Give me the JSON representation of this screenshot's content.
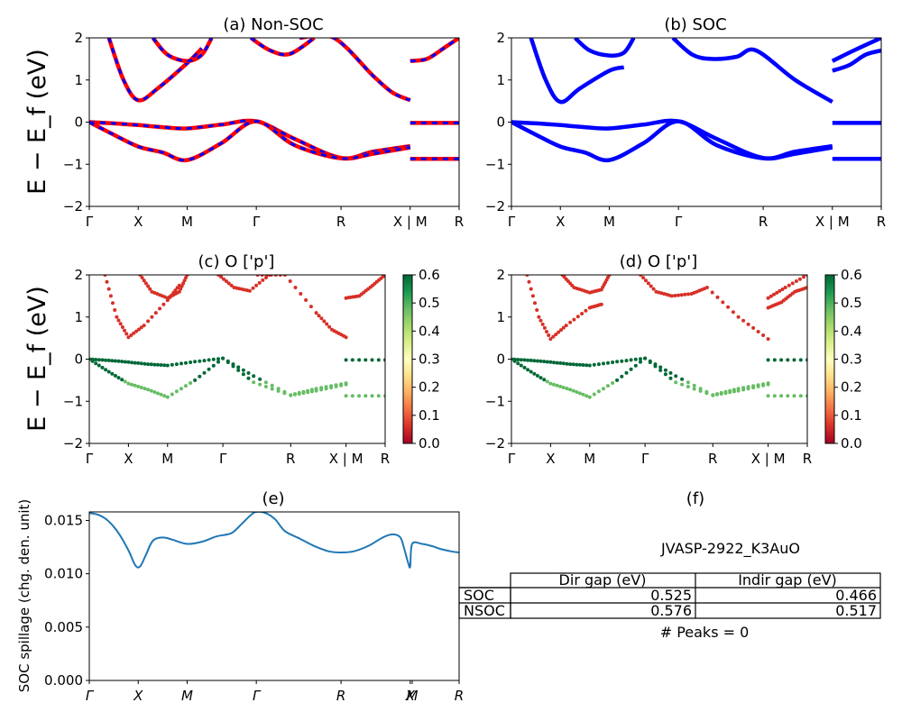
{
  "chart_data": [
    {
      "id": "a",
      "type": "line",
      "title": "(a) Non-SOC",
      "ylabel": "E − E_f (eV)",
      "ylim": [
        -2,
        2
      ],
      "yticks": [
        -2,
        -1,
        0,
        1,
        2
      ],
      "xtick_labels": [
        "Γ",
        "X",
        "M",
        "Γ",
        "R",
        "X | M",
        "R"
      ],
      "xtick_positions": [
        0,
        0.5,
        1.0,
        1.707,
        2.573,
        3.28,
        3.78
      ],
      "xlim": [
        0,
        3.78
      ],
      "series_colors": [
        "#ff0000",
        "#0000ff"
      ],
      "series": [
        {
          "x": [
            0,
            0.25,
            0.5,
            0.75,
            1.0,
            1.35,
            1.707,
            2.1,
            2.573,
            2.9,
            3.28
          ],
          "y": [
            0,
            -0.03,
            -0.07,
            -0.12,
            -0.15,
            -0.06,
            0.02,
            -0.4,
            -0.85,
            -0.7,
            -0.57
          ]
        },
        {
          "x": [
            0,
            0.25,
            0.5,
            0.75,
            1.0,
            1.35,
            1.707,
            2.1,
            2.573,
            2.9,
            3.28
          ],
          "y": [
            0,
            -0.3,
            -0.58,
            -0.72,
            -0.9,
            -0.5,
            0.02,
            -0.55,
            -0.86,
            -0.75,
            -0.6
          ]
        },
        {
          "x": [
            0.2,
            0.35,
            0.5,
            0.7,
            1.0,
            1.15
          ],
          "y": [
            2.0,
            1.0,
            0.52,
            0.8,
            1.4,
            1.75
          ]
        },
        {
          "x": [
            0.65,
            0.8,
            1.0,
            1.15,
            1.25
          ],
          "y": [
            2.0,
            1.6,
            1.45,
            1.6,
            2.0
          ]
        },
        {
          "x": [
            1.65,
            1.85,
            2.05,
            2.3
          ],
          "y": [
            2.0,
            1.7,
            1.62,
            2.0
          ]
        },
        {
          "x": [
            2.15,
            2.5,
            2.9,
            3.1,
            3.28
          ],
          "y": [
            2.0,
            2.0,
            1.1,
            0.7,
            0.52
          ]
        },
        {
          "x": [
            3.28,
            3.45,
            3.62,
            3.78
          ],
          "y": [
            1.45,
            1.5,
            1.75,
            2.0
          ]
        },
        {
          "x": [
            3.28,
            3.78
          ],
          "y": [
            -0.87,
            -0.87
          ]
        },
        {
          "x": [
            3.28,
            3.78
          ],
          "y": [
            -0.02,
            -0.02
          ]
        }
      ]
    },
    {
      "id": "b",
      "type": "line",
      "title": "(b) SOC",
      "ylim": [
        -2,
        2
      ],
      "yticks": [
        -2,
        -1,
        0,
        1,
        2
      ],
      "xtick_labels": [
        "Γ",
        "X",
        "M",
        "Γ",
        "R",
        "X | M",
        "R"
      ],
      "xtick_positions": [
        0,
        0.5,
        1.0,
        1.707,
        2.573,
        3.28,
        3.78
      ],
      "xlim": [
        0,
        3.78
      ],
      "series_colors": [
        "#0000ff"
      ],
      "series": [
        {
          "x": [
            0,
            0.25,
            0.5,
            0.75,
            1.0,
            1.35,
            1.707,
            2.1,
            2.573,
            2.9,
            3.28
          ],
          "y": [
            0,
            -0.03,
            -0.07,
            -0.12,
            -0.15,
            -0.06,
            0.02,
            -0.4,
            -0.85,
            -0.7,
            -0.57
          ]
        },
        {
          "x": [
            0,
            0.25,
            0.5,
            0.75,
            1.0,
            1.35,
            1.707,
            2.1,
            2.573,
            2.9,
            3.28
          ],
          "y": [
            0,
            -0.3,
            -0.58,
            -0.72,
            -0.9,
            -0.5,
            0.02,
            -0.55,
            -0.86,
            -0.75,
            -0.6
          ]
        },
        {
          "x": [
            0.2,
            0.35,
            0.5,
            0.7,
            1.0,
            1.15
          ],
          "y": [
            2.0,
            1.0,
            0.48,
            0.8,
            1.22,
            1.3
          ]
        },
        {
          "x": [
            0.65,
            0.8,
            1.0,
            1.15,
            1.25
          ],
          "y": [
            2.0,
            1.7,
            1.58,
            1.65,
            2.0
          ]
        },
        {
          "x": [
            1.65,
            1.85,
            2.05,
            2.3,
            2.5,
            2.9,
            3.28
          ],
          "y": [
            2.0,
            1.6,
            1.5,
            1.55,
            1.7,
            1.0,
            0.48
          ]
        },
        {
          "x": [
            3.28,
            3.45,
            3.62,
            3.78
          ],
          "y": [
            1.22,
            1.35,
            1.6,
            1.7
          ]
        },
        {
          "x": [
            3.28,
            3.5,
            3.78
          ],
          "y": [
            1.45,
            1.7,
            2.0
          ]
        },
        {
          "x": [
            3.28,
            3.78
          ],
          "y": [
            -0.87,
            -0.87
          ]
        },
        {
          "x": [
            3.28,
            3.78
          ],
          "y": [
            -0.02,
            -0.02
          ]
        }
      ]
    },
    {
      "id": "c",
      "type": "scatter",
      "title": "(c)  O ['p']",
      "ylabel": "E − E_f (eV)",
      "ylim": [
        -2,
        2
      ],
      "yticks": [
        -2,
        -1,
        0,
        1,
        2
      ],
      "xtick_labels": [
        "Γ",
        "X",
        "M",
        "Γ",
        "R",
        "X | M",
        "R"
      ],
      "xtick_positions": [
        0,
        0.5,
        1.0,
        1.707,
        2.573,
        3.28,
        3.78
      ],
      "xlim": [
        0,
        3.78
      ],
      "colorbar": {
        "min": 0.0,
        "max": 0.6,
        "ticks": [
          "0.0",
          "0.1",
          "0.2",
          "0.3",
          "0.4",
          "0.5",
          "0.6"
        ]
      }
    },
    {
      "id": "d",
      "type": "scatter",
      "title": "(d) O ['p']",
      "ylim": [
        -2,
        2
      ],
      "yticks": [
        -2,
        -1,
        0,
        1,
        2
      ],
      "xtick_labels": [
        "Γ",
        "X",
        "M",
        "Γ",
        "R",
        "X | M",
        "R"
      ],
      "xtick_positions": [
        0,
        0.5,
        1.0,
        1.707,
        2.573,
        3.28,
        3.78
      ],
      "xlim": [
        0,
        3.78
      ],
      "colorbar": {
        "min": 0.0,
        "max": 0.6,
        "ticks": [
          "0.0",
          "0.1",
          "0.2",
          "0.3",
          "0.4",
          "0.5",
          "0.6"
        ]
      }
    },
    {
      "id": "e",
      "type": "line",
      "title": "(e)",
      "ylabel": "SOC spillage (chg. den. unit)",
      "ylim": [
        0,
        0.0158
      ],
      "yticks": [
        0.0,
        0.005,
        0.01,
        0.015
      ],
      "ytick_labels": [
        "0.000",
        "0.005",
        "0.010",
        "0.015"
      ],
      "xtick_labels": [
        "Γ",
        "X",
        "M",
        "Γ",
        "R",
        "X",
        "M",
        "R"
      ],
      "xtick_positions": [
        0,
        0.5,
        1.0,
        1.707,
        2.573,
        3.28,
        3.3,
        3.78
      ],
      "xlim": [
        0,
        3.78
      ],
      "series": [
        {
          "color": "#1f77b4",
          "x": [
            0,
            0.1,
            0.2,
            0.3,
            0.4,
            0.47,
            0.52,
            0.58,
            0.65,
            0.75,
            0.85,
            1.0,
            1.15,
            1.3,
            1.45,
            1.55,
            1.65,
            1.707,
            1.8,
            1.9,
            2.0,
            2.15,
            2.3,
            2.45,
            2.573,
            2.7,
            2.85,
            3.0,
            3.1,
            3.18,
            3.22,
            3.26,
            3.28,
            3.3,
            3.4,
            3.5,
            3.6,
            3.7,
            3.78
          ],
          "y": [
            0.0157,
            0.0155,
            0.0149,
            0.0138,
            0.0122,
            0.0108,
            0.0107,
            0.0118,
            0.0131,
            0.0134,
            0.0132,
            0.0128,
            0.013,
            0.0135,
            0.0138,
            0.0146,
            0.0155,
            0.0158,
            0.0157,
            0.0151,
            0.014,
            0.0133,
            0.0126,
            0.0121,
            0.012,
            0.0121,
            0.0126,
            0.0134,
            0.0137,
            0.0134,
            0.0123,
            0.011,
            0.0107,
            0.0128,
            0.0128,
            0.0126,
            0.0123,
            0.0121,
            0.012
          ]
        }
      ]
    }
  ],
  "panel_f": {
    "title": "(f)",
    "material": "JVASP-2922_K3AuO",
    "table": {
      "headers": [
        "Dir gap (eV)",
        "Indir gap (eV)"
      ],
      "rows": [
        {
          "label": "SOC",
          "dir": "0.525",
          "indir": "0.466"
        },
        {
          "label": "NSOC",
          "dir": "0.576",
          "indir": "0.517"
        }
      ]
    },
    "peaks_text": "# Peaks = 0"
  }
}
